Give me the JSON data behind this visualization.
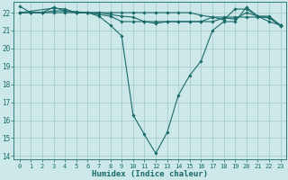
{
  "xlabel": "Humidex (Indice chaleur)",
  "bg_color": "#cde8e8",
  "grid_color": "#aacccc",
  "line_color": "#1a6b6b",
  "xlim": [
    -0.5,
    23.5
  ],
  "ylim": [
    13.8,
    22.6
  ],
  "yticks": [
    14,
    15,
    16,
    17,
    18,
    19,
    20,
    21,
    22
  ],
  "xticks": [
    0,
    1,
    2,
    3,
    4,
    5,
    6,
    7,
    8,
    9,
    10,
    11,
    12,
    13,
    14,
    15,
    16,
    17,
    18,
    19,
    20,
    21,
    22,
    23
  ],
  "series": [
    {
      "x": [
        0,
        1,
        2,
        3,
        4,
        5,
        6,
        7,
        8,
        9,
        10,
        11,
        12,
        13,
        14,
        15,
        16,
        17,
        18,
        19,
        20,
        21,
        22,
        23
      ],
      "y": [
        22.35,
        22.0,
        22.0,
        22.3,
        22.1,
        22.0,
        22.0,
        21.8,
        21.3,
        20.7,
        16.3,
        15.2,
        14.15,
        15.3,
        17.4,
        18.5,
        19.3,
        21.0,
        21.5,
        21.5,
        22.3,
        21.8,
        21.8,
        21.3
      ]
    },
    {
      "x": [
        0,
        1,
        2,
        3,
        4,
        5,
        6,
        7,
        8,
        9,
        10,
        11,
        12,
        13,
        14,
        15,
        16,
        17,
        18,
        19,
        20,
        21,
        22,
        23
      ],
      "y": [
        22.0,
        22.0,
        22.0,
        22.0,
        22.0,
        22.0,
        22.0,
        22.0,
        22.0,
        22.0,
        22.0,
        22.0,
        22.0,
        22.0,
        22.0,
        22.0,
        21.85,
        21.75,
        21.75,
        21.75,
        21.75,
        21.75,
        21.75,
        21.25
      ]
    },
    {
      "x": [
        0,
        1,
        2,
        3,
        4,
        5,
        6,
        7,
        8,
        9,
        10,
        11,
        12,
        13,
        14,
        15,
        16,
        17,
        18,
        19,
        20,
        21,
        22,
        23
      ],
      "y": [
        22.0,
        22.0,
        22.0,
        22.1,
        22.1,
        22.05,
        22.0,
        21.9,
        21.8,
        21.5,
        21.5,
        21.5,
        21.4,
        21.5,
        21.5,
        21.5,
        21.5,
        21.75,
        21.6,
        22.2,
        22.2,
        21.8,
        21.5,
        21.3
      ]
    },
    {
      "x": [
        0,
        3,
        4,
        5,
        6,
        7,
        8,
        9,
        10,
        11,
        12,
        13,
        14,
        15,
        16,
        17,
        18,
        19,
        20,
        21,
        22,
        23
      ],
      "y": [
        22.0,
        22.25,
        22.2,
        22.0,
        22.0,
        22.0,
        21.9,
        21.8,
        21.75,
        21.5,
        21.5,
        21.5,
        21.5,
        21.5,
        21.5,
        21.5,
        21.7,
        21.65,
        22.0,
        21.8,
        21.7,
        21.3
      ]
    }
  ]
}
